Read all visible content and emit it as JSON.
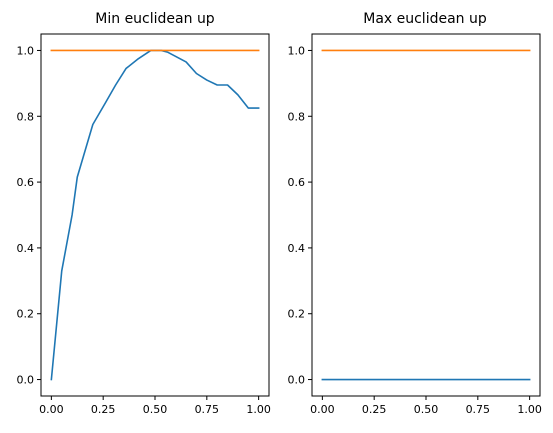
{
  "colors": {
    "blue": "#1f77b4",
    "orange": "#ff7f0e"
  },
  "chart_data": [
    {
      "type": "line",
      "title": "Min euclidean up",
      "xlabel": "",
      "ylabel": "",
      "xlim": [
        -0.05,
        1.05
      ],
      "ylim": [
        -0.05,
        1.05
      ],
      "xticks": [
        0.0,
        0.25,
        0.5,
        0.75,
        1.0
      ],
      "xtick_labels": [
        "0.00",
        "0.25",
        "0.50",
        "0.75",
        "1.00"
      ],
      "yticks": [
        0.0,
        0.2,
        0.4,
        0.6,
        0.8,
        1.0
      ],
      "ytick_labels": [
        "0.0",
        "0.2",
        "0.4",
        "0.6",
        "0.8",
        "1.0"
      ],
      "grid": false,
      "series": [
        {
          "color": "#1f77b4",
          "x": [
            0.0,
            0.05,
            0.1,
            0.125,
            0.2,
            0.26,
            0.31,
            0.36,
            0.42,
            0.48,
            0.53,
            0.56,
            0.65,
            0.7,
            0.75,
            0.8,
            0.85,
            0.9,
            0.95,
            1.0
          ],
          "y": [
            0.0,
            0.33,
            0.5,
            0.615,
            0.775,
            0.84,
            0.895,
            0.945,
            0.975,
            1.0,
            1.0,
            0.995,
            0.965,
            0.93,
            0.91,
            0.895,
            0.895,
            0.865,
            0.825,
            0.825
          ]
        },
        {
          "color": "#ff7f0e",
          "x": [
            0.0,
            1.0
          ],
          "y": [
            1.0,
            1.0
          ]
        }
      ]
    },
    {
      "type": "line",
      "title": "Max euclidean up",
      "xlabel": "",
      "ylabel": "",
      "xlim": [
        -0.05,
        1.05
      ],
      "ylim": [
        -0.05,
        1.05
      ],
      "xticks": [
        0.0,
        0.25,
        0.5,
        0.75,
        1.0
      ],
      "xtick_labels": [
        "0.00",
        "0.25",
        "0.50",
        "0.75",
        "1.00"
      ],
      "yticks": [
        0.0,
        0.2,
        0.4,
        0.6,
        0.8,
        1.0
      ],
      "ytick_labels": [
        "0.0",
        "0.2",
        "0.4",
        "0.6",
        "0.8",
        "1.0"
      ],
      "grid": false,
      "series": [
        {
          "color": "#1f77b4",
          "x": [
            0.0,
            1.0
          ],
          "y": [
            0.0,
            0.0
          ]
        },
        {
          "color": "#ff7f0e",
          "x": [
            0.0,
            1.0
          ],
          "y": [
            1.0,
            1.0
          ]
        }
      ]
    }
  ]
}
